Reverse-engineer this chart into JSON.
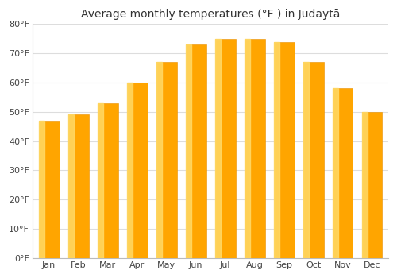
{
  "title": "Average monthly temperatures (°F ) in Judaytā",
  "months": [
    "Jan",
    "Feb",
    "Mar",
    "Apr",
    "May",
    "Jun",
    "Jul",
    "Aug",
    "Sep",
    "Oct",
    "Nov",
    "Dec"
  ],
  "values": [
    47,
    49,
    53,
    60,
    67,
    73,
    75,
    75,
    74,
    67,
    58,
    50
  ],
  "bar_color_main": "#FFA500",
  "bar_color_highlight": "#FFD966",
  "bar_edge_color": "#E89000",
  "ylim": [
    0,
    80
  ],
  "yticks": [
    0,
    10,
    20,
    30,
    40,
    50,
    60,
    70,
    80
  ],
  "ytick_labels": [
    "0°F",
    "10°F",
    "20°F",
    "30°F",
    "40°F",
    "50°F",
    "60°F",
    "70°F",
    "80°F"
  ],
  "background_color": "#ffffff",
  "plot_bg_color": "#ffffff",
  "grid_color": "#dddddd",
  "title_fontsize": 10,
  "tick_fontsize": 8,
  "bar_width": 0.7
}
